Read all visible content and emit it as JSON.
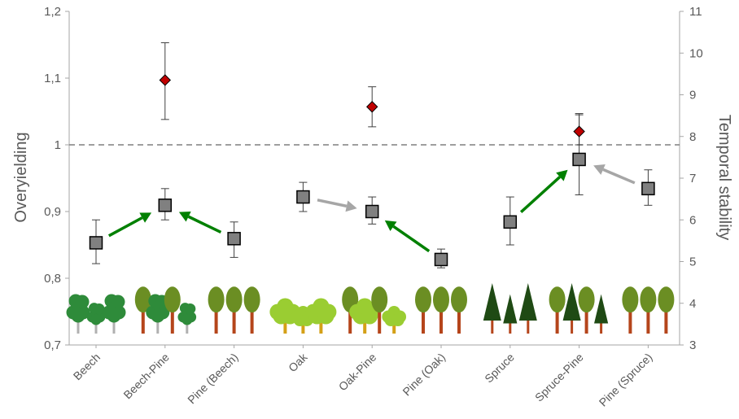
{
  "chart_data": {
    "type": "scatter",
    "title": "",
    "ylabel": "Overyielding",
    "y2label": "Temporal stability",
    "ylim": [
      0.7,
      1.2
    ],
    "y2lim": [
      3,
      11
    ],
    "yticks": [
      "0,7",
      "0,8",
      "0,9",
      "1",
      "1,1",
      "1,2"
    ],
    "y2ticks": [
      "3",
      "4",
      "5",
      "6",
      "7",
      "8",
      "9",
      "10",
      "11"
    ],
    "reference_line": 1.0,
    "categories": [
      "Beech",
      "Beech-Pine",
      "Pine (Beech)",
      "Oak",
      "Oak-Pine",
      "Pine (Oak)",
      "Spruce",
      "Spruce-Pine",
      "Pine (Spruce)"
    ],
    "series": [
      {
        "marker": "diamond",
        "color": "#C00000",
        "axis": "left",
        "points": [
          {
            "category": "Beech-Pine",
            "value": 1.097,
            "err_low": 1.038,
            "err_high": 1.153
          },
          {
            "category": "Oak-Pine",
            "value": 1.057,
            "err_low": 1.027,
            "err_high": 1.087
          },
          {
            "category": "Spruce-Pine",
            "value": 1.02,
            "err_low": 1.0,
            "err_high": 1.045
          }
        ]
      },
      {
        "marker": "square",
        "color": "#808080",
        "axis": "right",
        "points": [
          {
            "category": "Beech",
            "value": 5.45,
            "err_low": 4.95,
            "err_high": 6.0
          },
          {
            "category": "Beech-Pine",
            "value": 6.35,
            "err_low": 6.0,
            "err_high": 6.75
          },
          {
            "category": "Pine (Beech)",
            "value": 5.55,
            "err_low": 5.1,
            "err_high": 5.95
          },
          {
            "category": "Oak",
            "value": 6.55,
            "err_low": 6.2,
            "err_high": 6.9
          },
          {
            "category": "Oak-Pine",
            "value": 6.2,
            "err_low": 5.9,
            "err_high": 6.55
          },
          {
            "category": "Pine (Oak)",
            "value": 5.05,
            "err_low": 4.85,
            "err_high": 5.3
          },
          {
            "category": "Spruce",
            "value": 5.95,
            "err_low": 5.4,
            "err_high": 6.55
          },
          {
            "category": "Spruce-Pine",
            "value": 7.45,
            "err_low": 6.6,
            "err_high": 8.55
          },
          {
            "category": "Pine (Spruce)",
            "value": 6.75,
            "err_low": 6.35,
            "err_high": 7.2
          }
        ]
      }
    ],
    "arrows": [
      {
        "from": "Beech",
        "to": "Beech-Pine",
        "color": "#008000"
      },
      {
        "from": "Pine (Beech)",
        "to": "Beech-Pine",
        "color": "#008000"
      },
      {
        "from": "Oak",
        "to": "Oak-Pine",
        "color": "#A6A6A6"
      },
      {
        "from": "Pine (Oak)",
        "to": "Oak-Pine",
        "color": "#008000"
      },
      {
        "from": "Spruce",
        "to": "Spruce-Pine",
        "color": "#008000"
      },
      {
        "from": "Pine (Spruce)",
        "to": "Spruce-Pine",
        "color": "#A6A6A6"
      }
    ],
    "tree_icons": {
      "Beech": [
        "beech",
        "beech-small",
        "beech"
      ],
      "Beech-Pine": [
        "pine",
        "beech",
        "pine",
        "beech-small"
      ],
      "Pine (Beech)": [
        "pine",
        "pine",
        "pine"
      ],
      "Oak": [
        "oak",
        "oak-small",
        "oak"
      ],
      "Oak-Pine": [
        "pine",
        "oak",
        "pine",
        "oak-small"
      ],
      "Pine (Oak)": [
        "pine",
        "pine",
        "pine"
      ],
      "Spruce": [
        "spruce",
        "spruce-small",
        "spruce"
      ],
      "Spruce-Pine": [
        "pine",
        "spruce",
        "pine",
        "spruce-small"
      ],
      "Pine (Spruce)": [
        "pine",
        "pine",
        "pine"
      ]
    },
    "colors": {
      "axis": "#A6A6A6",
      "text": "#595959",
      "beech_foliage": "#2E8B3A",
      "oak_foliage": "#9ACD32",
      "oak_trunk": "#D4A017",
      "spruce_foliage": "#1F4A14",
      "pine_foliage": "#6B8E23",
      "pine_trunk": "#B5451B",
      "beech_trunk": "#B0B0B0"
    },
    "grid": false
  }
}
